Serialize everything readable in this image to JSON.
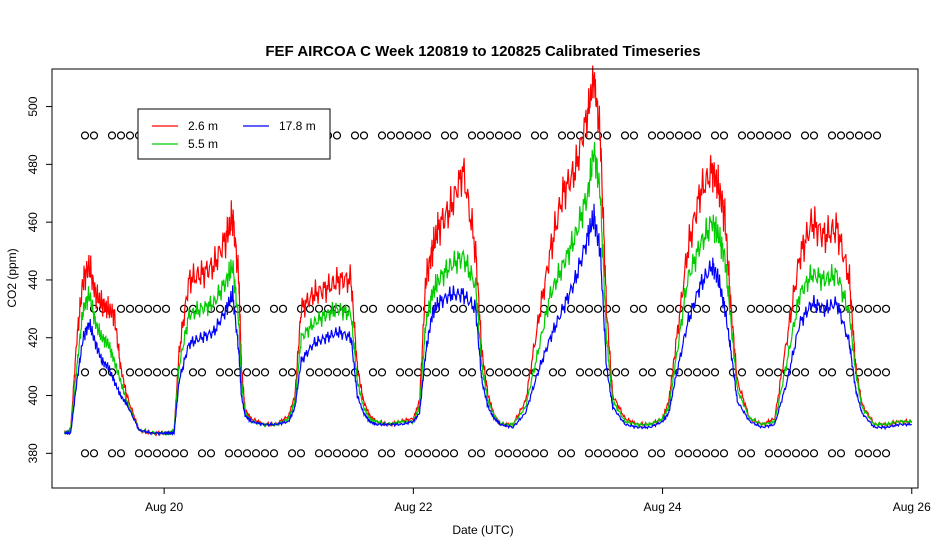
{
  "chart_data": {
    "type": "line",
    "title": "FEF AIRCOA C  Week 120819 to 120825  Calibrated Timeseries",
    "xlabel": "Date (UTC)",
    "ylabel": "CO2 (ppm)",
    "xlim": [
      19.1,
      26.05
    ],
    "ylim": [
      368,
      513
    ],
    "x_ticks": [
      {
        "value": 20,
        "label": "Aug 20"
      },
      {
        "value": 22,
        "label": "Aug 22"
      },
      {
        "value": 24,
        "label": "Aug 24"
      },
      {
        "value": 26,
        "label": "Aug 26"
      }
    ],
    "y_ticks": [
      {
        "value": 380,
        "label": "380"
      },
      {
        "value": 400,
        "label": "400"
      },
      {
        "value": 420,
        "label": "420"
      },
      {
        "value": 440,
        "label": "440"
      },
      {
        "value": 460,
        "label": "460"
      },
      {
        "value": 480,
        "label": "480"
      },
      {
        "value": 500,
        "label": "500"
      }
    ],
    "legend": {
      "placement": "top-left",
      "entries": [
        {
          "label": "2.6 m",
          "color": "#ff0000"
        },
        {
          "label": "17.8 m",
          "color": "#0000ff"
        },
        {
          "label": "5.5 m",
          "color": "#00cc00"
        }
      ]
    },
    "x": [
      19.2,
      19.25,
      19.3,
      19.35,
      19.4,
      19.45,
      19.5,
      19.55,
      19.6,
      19.65,
      19.7,
      19.8,
      19.9,
      20.0,
      20.05,
      20.08,
      20.12,
      20.2,
      20.3,
      20.4,
      20.5,
      20.55,
      20.6,
      20.62,
      20.65,
      20.7,
      20.8,
      20.9,
      21.0,
      21.05,
      21.1,
      21.2,
      21.3,
      21.4,
      21.5,
      21.55,
      21.6,
      21.65,
      21.7,
      21.8,
      21.9,
      22.0,
      22.05,
      22.1,
      22.15,
      22.2,
      22.3,
      22.4,
      22.5,
      22.55,
      22.6,
      22.65,
      22.7,
      22.8,
      22.9,
      23.0,
      23.1,
      23.2,
      23.3,
      23.4,
      23.45,
      23.5,
      23.55,
      23.6,
      23.7,
      23.8,
      23.9,
      24.0,
      24.05,
      24.1,
      24.2,
      24.3,
      24.4,
      24.45,
      24.5,
      24.55,
      24.6,
      24.7,
      24.8,
      24.9,
      25.0,
      25.1,
      25.2,
      25.3,
      25.4,
      25.5,
      25.55,
      25.6,
      25.7,
      25.8,
      25.9,
      26.0
    ],
    "series": [
      {
        "name": "2.6 m",
        "color": "#ff0000",
        "values": [
          387,
          388,
          420,
          440,
          445,
          435,
          432,
          430,
          428,
          410,
          400,
          388,
          387,
          387,
          387,
          388,
          415,
          440,
          442,
          445,
          455,
          462,
          440,
          410,
          395,
          392,
          390,
          390,
          393,
          400,
          430,
          435,
          437,
          440,
          440,
          410,
          398,
          393,
          391,
          390,
          391,
          392,
          398,
          440,
          450,
          458,
          465,
          478,
          450,
          415,
          400,
          393,
          390,
          390,
          398,
          425,
          450,
          470,
          478,
          498,
          510,
          490,
          430,
          400,
          392,
          390,
          390,
          392,
          398,
          415,
          450,
          470,
          478,
          472,
          462,
          430,
          405,
          392,
          390,
          392,
          420,
          448,
          460,
          455,
          458,
          440,
          410,
          397,
          390,
          390,
          391,
          391
        ]
      },
      {
        "name": "5.5 m",
        "color": "#00cc00",
        "values": [
          387,
          388,
          410,
          430,
          435,
          425,
          420,
          418,
          412,
          405,
          398,
          388,
          387,
          387,
          387,
          388,
          410,
          428,
          430,
          432,
          440,
          445,
          425,
          405,
          394,
          391,
          390,
          390,
          392,
          398,
          420,
          425,
          428,
          430,
          428,
          405,
          396,
          392,
          391,
          390,
          391,
          391,
          396,
          425,
          435,
          440,
          445,
          448,
          438,
          410,
          398,
          393,
          390,
          390,
          396,
          415,
          435,
          445,
          455,
          470,
          485,
          470,
          420,
          398,
          391,
          390,
          390,
          392,
          396,
          410,
          440,
          452,
          460,
          455,
          448,
          425,
          402,
          392,
          390,
          391,
          412,
          435,
          442,
          440,
          442,
          428,
          408,
          396,
          390,
          390,
          391,
          391
        ]
      },
      {
        "name": "17.8 m",
        "color": "#0000ff",
        "values": [
          387,
          387,
          405,
          420,
          425,
          418,
          412,
          410,
          405,
          400,
          397,
          388,
          387,
          387,
          387,
          387,
          405,
          418,
          420,
          422,
          430,
          435,
          415,
          400,
          393,
          391,
          390,
          390,
          391,
          396,
          412,
          418,
          420,
          422,
          420,
          400,
          394,
          391,
          390,
          390,
          390,
          391,
          394,
          415,
          428,
          432,
          435,
          435,
          430,
          405,
          396,
          392,
          390,
          389,
          394,
          408,
          420,
          430,
          440,
          455,
          462,
          450,
          410,
          396,
          390,
          389,
          389,
          391,
          394,
          405,
          425,
          438,
          445,
          440,
          430,
          415,
          398,
          391,
          389,
          390,
          405,
          425,
          432,
          430,
          432,
          418,
          402,
          394,
          389,
          389,
          390,
          390
        ]
      },
      {
        "name": "markers",
        "color": "#000000",
        "levels": [
          380,
          408,
          430,
          490
        ]
      }
    ]
  }
}
